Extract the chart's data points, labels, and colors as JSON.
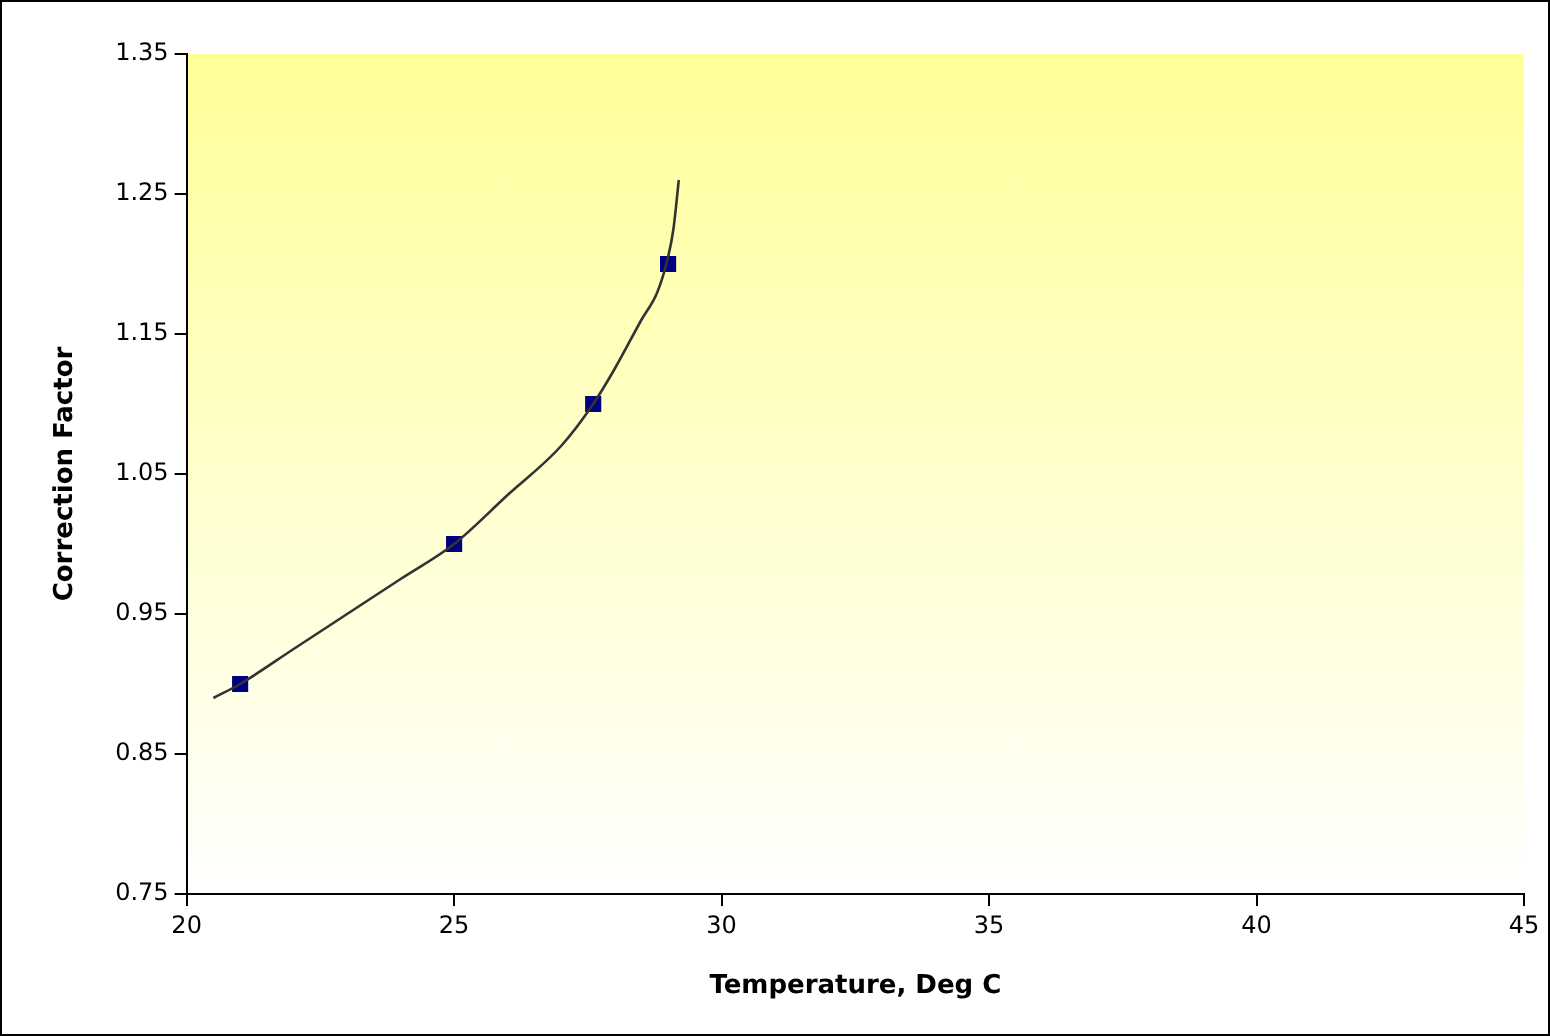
{
  "chart_data": {
    "type": "scatter",
    "xlabel": "Temperature, Deg C",
    "ylabel": "Correction Factor",
    "xlim": [
      20,
      45
    ],
    "xticks": [
      20,
      25,
      30,
      35,
      40,
      45
    ],
    "ylim": [
      0.75,
      1.35
    ],
    "yticks": [
      {
        "value": 0.75,
        "label": "0.75"
      },
      {
        "value": 0.85,
        "label": "0.85"
      },
      {
        "value": 0.95,
        "label": "0.95"
      },
      {
        "value": 1.05,
        "label": "1.05"
      },
      {
        "value": 1.15,
        "label": "1.15"
      },
      {
        "value": 1.25,
        "label": "1.25"
      },
      {
        "value": 1.35,
        "label": "1.35"
      }
    ],
    "grid": false,
    "legend": false,
    "marker": "square",
    "series": [
      {
        "color": "#000080",
        "x": [
          21,
          25,
          27.6,
          29
        ],
        "values": [
          0.9,
          1.0,
          1.1,
          1.2
        ]
      },
      {
        "type": "line",
        "color": "#333333",
        "marker": "none",
        "x": [
          20.5,
          21,
          22,
          23,
          24,
          25,
          26,
          27,
          27.6,
          28,
          28.5,
          28.8,
          29,
          29.1,
          29.2
        ],
        "values": [
          0.89,
          0.9,
          0.925,
          0.95,
          0.975,
          1.0,
          1.035,
          1.07,
          1.1,
          1.125,
          1.16,
          1.18,
          1.205,
          1.225,
          1.26
        ]
      }
    ]
  }
}
